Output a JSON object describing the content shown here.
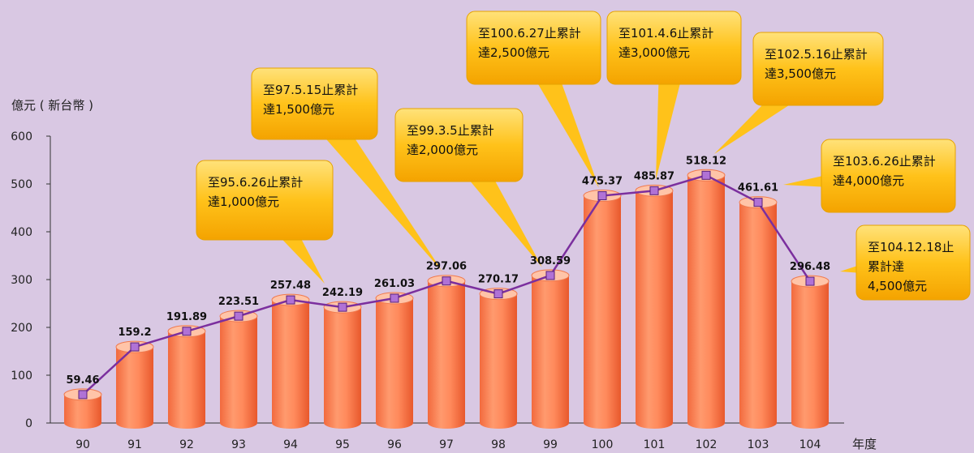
{
  "chart_data": {
    "type": "bar",
    "ylabel": "億元 ( 新台幣 )",
    "xlabel": "年度",
    "ylim": [
      0,
      600
    ],
    "yticks": [
      0,
      100,
      200,
      300,
      400,
      500,
      600
    ],
    "categories": [
      "90",
      "91",
      "92",
      "93",
      "94",
      "95",
      "96",
      "97",
      "98",
      "99",
      "100",
      "101",
      "102",
      "103",
      "104"
    ],
    "values": [
      59.46,
      159.2,
      191.89,
      223.51,
      257.48,
      242.19,
      261.03,
      297.06,
      270.17,
      308.59,
      475.37,
      485.87,
      518.12,
      461.61,
      296.48
    ],
    "value_labels": [
      "59.46",
      "159.2",
      "191.89",
      "223.51",
      "257.48",
      "242.19",
      "261.03",
      "297.06",
      "270.17",
      "308.59",
      "475.37",
      "485.87",
      "518.12",
      "461.61",
      "296.48"
    ],
    "grid": false,
    "colors": {
      "bar": "#ff8a5c",
      "bar_top": "#ffc4a8",
      "line": "#7b2f9e",
      "marker": "#b072d6",
      "callout": "#ffc21a",
      "background": "#d9c8e3"
    },
    "annotations": [
      {
        "category": "95",
        "lines": [
          "至95.6.26止累計",
          "達1,000億元"
        ]
      },
      {
        "category": "97",
        "lines": [
          "至97.5.15止累計",
          "達1,500億元"
        ]
      },
      {
        "category": "99",
        "lines": [
          "至99.3.5止累計",
          "達2,000億元"
        ]
      },
      {
        "category": "100",
        "lines": [
          "至100.6.27止累計",
          "達2,500億元"
        ]
      },
      {
        "category": "101",
        "lines": [
          "至101.4.6止累計",
          "達3,000億元"
        ]
      },
      {
        "category": "102",
        "lines": [
          "至102.5.16止累計",
          "達3,500億元"
        ]
      },
      {
        "category": "103",
        "lines": [
          "至103.6.26止累計",
          "達4,000億元"
        ]
      },
      {
        "category": "104",
        "lines": [
          "至104.12.18止",
          "累計達",
          "4,500億元"
        ]
      }
    ]
  }
}
